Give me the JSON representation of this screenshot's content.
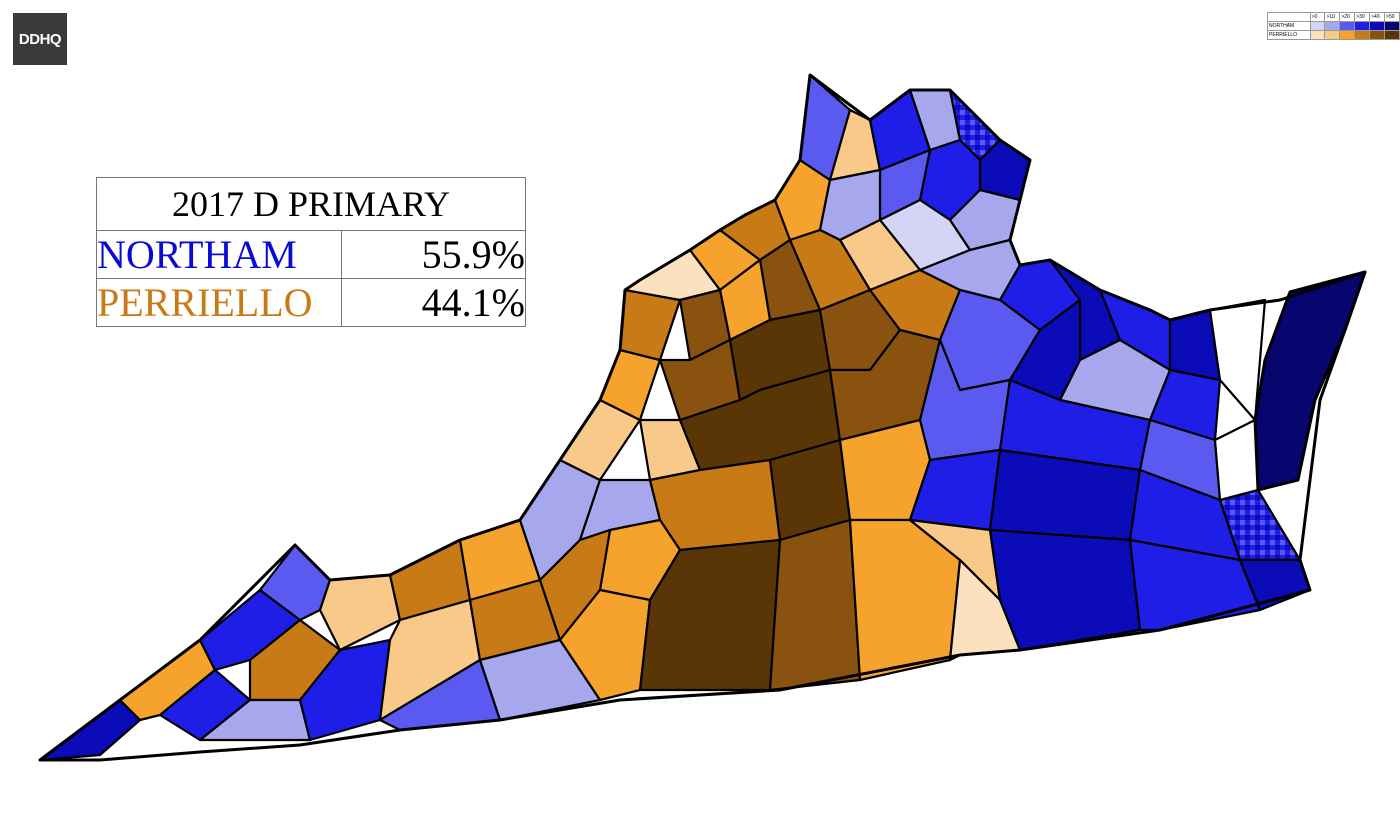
{
  "logo": {
    "text": "DDHQ"
  },
  "results": {
    "title": "2017 D PRIMARY",
    "rows": [
      {
        "name": "NORTHAM",
        "pct": "55.9%",
        "color": "#0a0ad6"
      },
      {
        "name": "PERRIELLO",
        "pct": "44.1%",
        "color": "#c87a17"
      }
    ]
  },
  "legend": {
    "headers": [
      "",
      ">0",
      ">10",
      ">20",
      ">30",
      ">40",
      ">50"
    ],
    "rows": [
      {
        "label": "NORTHAM",
        "colors": [
          "#d4d4f6",
          "#a7a7ee",
          "#5a5af0",
          "#1e1ee6",
          "#0b0bb8",
          "#06066e"
        ]
      },
      {
        "label": "PERRIELLO",
        "colors": [
          "#fbe1bd",
          "#f9c98a",
          "#f5a32d",
          "#c87a17",
          "#8a520f",
          "#5a3607"
        ]
      }
    ]
  },
  "map": {
    "palette": {
      "n1": "#d4d4f6",
      "n2": "#a7a7ee",
      "n3": "#5a5af0",
      "n4": "#1e1ee6",
      "n5": "#0b0bb8",
      "n6": "#06066e",
      "p1": "#fbe1bd",
      "p2": "#f9c98a",
      "p3": "#f5a32d",
      "p4": "#c87a17",
      "p5": "#8a520f",
      "p6": "#5a3607",
      "tie": "#b5b5b5",
      "none": "#ffffff"
    }
  }
}
